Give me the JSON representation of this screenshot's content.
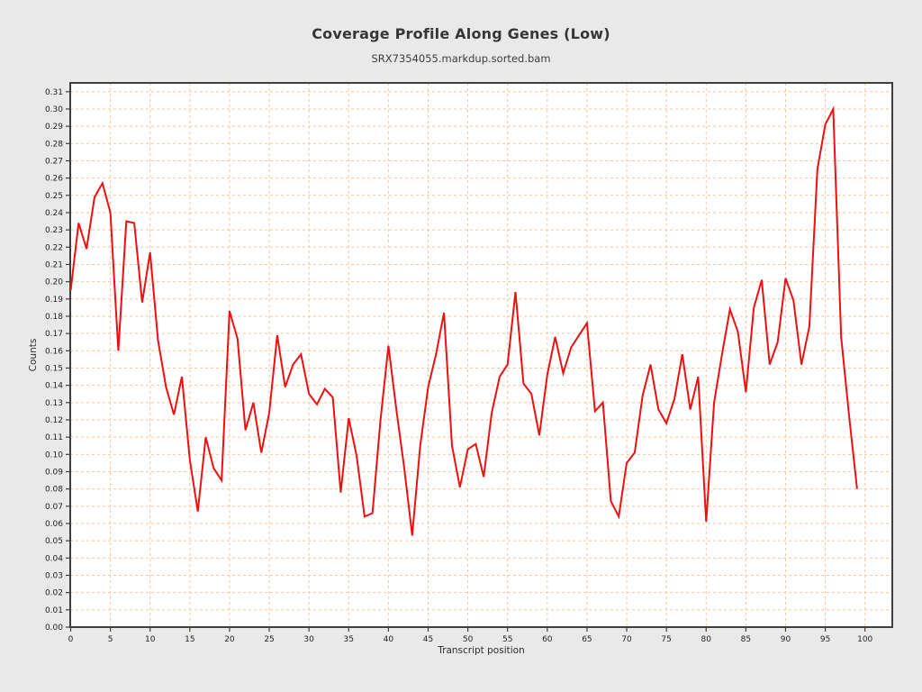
{
  "title": "Coverage Profile Along Genes (Low)",
  "subtitle": "SRX7354055.markdup.sorted.bam",
  "chart_data": {
    "type": "line",
    "title": "Coverage Profile Along Genes (Low)",
    "subtitle": "SRX7354055.markdup.sorted.bam",
    "xlabel": "Transcript position",
    "ylabel": "Counts",
    "xlim": [
      0,
      103.5
    ],
    "ylim": [
      0,
      0.315
    ],
    "grid": true,
    "legend": "none",
    "series_name": "Coverage",
    "line_color": "#ee1010",
    "grid_color": "#f4c79e",
    "plot_background": "#ffffff",
    "figure_background": "#e9e9e9",
    "frame_color": "#3f3f3f",
    "x_tick_labels": [
      "0",
      "5",
      "10",
      "15",
      "20",
      "25",
      "30",
      "35",
      "40",
      "45",
      "50",
      "55",
      "60",
      "65",
      "70",
      "75",
      "80",
      "85",
      "90",
      "95",
      "100"
    ],
    "x_tick_values": [
      0,
      5,
      10,
      15,
      20,
      25,
      30,
      35,
      40,
      45,
      50,
      55,
      60,
      65,
      70,
      75,
      80,
      85,
      90,
      95,
      100
    ],
    "y_tick_labels": [
      "0.00",
      "0.01",
      "0.02",
      "0.03",
      "0.04",
      "0.05",
      "0.06",
      "0.07",
      "0.08",
      "0.09",
      "0.10",
      "0.11",
      "0.12",
      "0.13",
      "0.14",
      "0.15",
      "0.16",
      "0.17",
      "0.18",
      "0.19",
      "0.20",
      "0.21",
      "0.22",
      "0.23",
      "0.24",
      "0.25",
      "0.26",
      "0.27",
      "0.28",
      "0.29",
      "0.30",
      "0.31"
    ],
    "y_tick_values": [
      0.0,
      0.01,
      0.02,
      0.03,
      0.04,
      0.05,
      0.06,
      0.07,
      0.08,
      0.09,
      0.1,
      0.11,
      0.12,
      0.13,
      0.14,
      0.15,
      0.16,
      0.17,
      0.18,
      0.19,
      0.2,
      0.21,
      0.22,
      0.23,
      0.24,
      0.25,
      0.26,
      0.27,
      0.28,
      0.29,
      0.3,
      0.31
    ],
    "x": [
      0,
      1,
      2,
      3,
      4,
      5,
      6,
      7,
      8,
      9,
      10,
      11,
      12,
      13,
      14,
      15,
      16,
      17,
      18,
      19,
      20,
      21,
      22,
      23,
      24,
      25,
      26,
      27,
      28,
      29,
      30,
      31,
      32,
      33,
      34,
      35,
      36,
      37,
      38,
      39,
      40,
      41,
      42,
      43,
      44,
      45,
      46,
      47,
      48,
      49,
      50,
      51,
      52,
      53,
      54,
      55,
      56,
      57,
      58,
      59,
      60,
      61,
      62,
      63,
      64,
      65,
      66,
      67,
      68,
      69,
      70,
      71,
      72,
      73,
      74,
      75,
      76,
      77,
      78,
      79,
      80,
      81,
      82,
      83,
      84,
      85,
      86,
      87,
      88,
      89,
      90,
      91,
      92,
      93,
      94,
      95,
      96,
      97,
      98,
      99
    ],
    "y": [
      0.195,
      0.234,
      0.219,
      0.249,
      0.257,
      0.24,
      0.16,
      0.235,
      0.234,
      0.188,
      0.217,
      0.166,
      0.139,
      0.123,
      0.145,
      0.097,
      0.067,
      0.11,
      0.092,
      0.085,
      0.183,
      0.167,
      0.114,
      0.13,
      0.101,
      0.124,
      0.169,
      0.139,
      0.152,
      0.158,
      0.135,
      0.129,
      0.138,
      0.133,
      0.078,
      0.121,
      0.099,
      0.064,
      0.066,
      0.12,
      0.163,
      0.126,
      0.092,
      0.053,
      0.105,
      0.139,
      0.158,
      0.182,
      0.105,
      0.081,
      0.103,
      0.106,
      0.087,
      0.124,
      0.145,
      0.152,
      0.194,
      0.141,
      0.135,
      0.111,
      0.146,
      0.168,
      0.147,
      0.162,
      0.169,
      0.176,
      0.125,
      0.13,
      0.073,
      0.064,
      0.095,
      0.101,
      0.134,
      0.152,
      0.126,
      0.118,
      0.132,
      0.158,
      0.126,
      0.145,
      0.061,
      0.13,
      0.158,
      0.184,
      0.171,
      0.136,
      0.185,
      0.201,
      0.152,
      0.165,
      0.202,
      0.189,
      0.152,
      0.174,
      0.265,
      0.291,
      0.3,
      0.168,
      0.122,
      0.08
    ]
  }
}
